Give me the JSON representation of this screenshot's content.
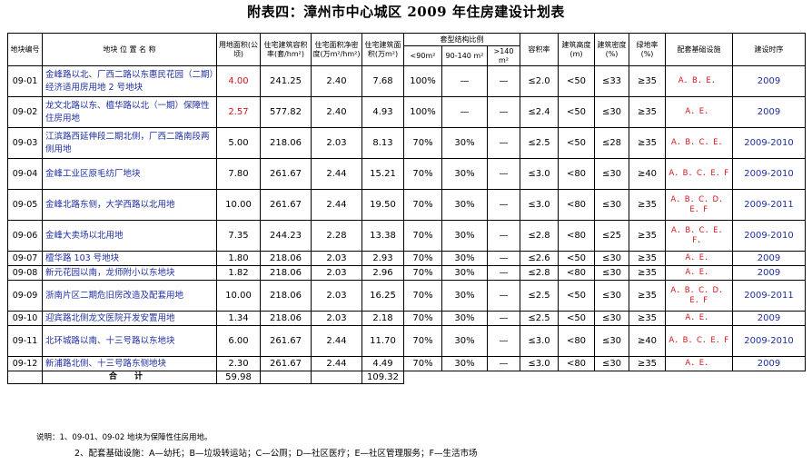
{
  "title": "附表四：漳州市中心城区 2009 年住房建设计划表",
  "headers": {
    "id": "地块编号",
    "name": "地块 位 置 名 称",
    "land_area": "用地面积(公顷)",
    "build_density": "住宅建筑容积率(套/hm²)",
    "housing_area_rate": "住宅面积净密度(万m²/hm²)",
    "housing_area": "住宅建筑面积(万m²)",
    "unit_mix": "套型结构比例",
    "mix_lt90": "<90m²",
    "mix_90_140": "90-140 m²",
    "mix_gt140": ">140 m²",
    "far": "容积率",
    "height": "建筑高度(m)",
    "density": "建筑密度(%)",
    "green": "绿地率(%)",
    "facilities": "配套基础设施",
    "timeline": "建设时序"
  },
  "rows": [
    {
      "id": "09-01",
      "name": "金峰路以北、厂西二路以东惠民花园（二期）经济适用房用地 2 号地块",
      "land": "4.00",
      "land_red": true,
      "units": "241.25",
      "rate": "2.40",
      "area": "7.68",
      "lt90": "100%",
      "m90": "—",
      "gt140": "—",
      "far": "≤2.0",
      "height": "<50",
      "density": "≤33",
      "green": "≥35",
      "fac": "A．B．E．",
      "year": "2009"
    },
    {
      "id": "09-02",
      "name": "龙文北路以东、檀华路以北（一期）保障性住房用地",
      "land": "2.57",
      "land_red": true,
      "units": "577.82",
      "rate": "2.40",
      "area": "4.93",
      "lt90": "100%",
      "m90": "—",
      "gt140": "—",
      "far": "≤2.4",
      "height": "<50",
      "density": "≤30",
      "green": "≥35",
      "fac": "A．E．",
      "year": "2009"
    },
    {
      "id": "09-03",
      "name": "江滨路西延伸段二期北侧，厂西二路南段两侧用地",
      "land": "5.00",
      "land_red": false,
      "units": "218.06",
      "rate": "2.03",
      "area": "8.13",
      "lt90": "70%",
      "m90": "30%",
      "gt140": "—",
      "far": "≤2.5",
      "height": "<50",
      "density": "≤28",
      "green": "≥35",
      "fac": "A．B．C．E．",
      "year": "2009-2010"
    },
    {
      "id": "09-04",
      "name": "金峰工业区原毛纺厂地块",
      "land": "7.80",
      "land_red": false,
      "units": "261.67",
      "rate": "2.44",
      "area": "15.21",
      "lt90": "70%",
      "m90": "30%",
      "gt140": "—",
      "far": "≤3.0",
      "height": "<80",
      "density": "≤30",
      "green": "≥40",
      "fac": "A．B．C．E．F",
      "year": "2009-2010"
    },
    {
      "id": "09-05",
      "name": "金峰北路东侧，大学西路以北用地",
      "land": "10.00",
      "land_red": false,
      "units": "261.67",
      "rate": "2.44",
      "area": "19.50",
      "lt90": "70%",
      "m90": "30%",
      "gt140": "—",
      "far": "≤3.0",
      "height": "<80",
      "density": "≤30",
      "green": "≥35",
      "fac": "A．B．C．D．E．F",
      "year": "2009-2011"
    },
    {
      "id": "09-06",
      "name": "金峰大卖场以北用地",
      "land": "7.35",
      "land_red": false,
      "units": "244.23",
      "rate": "2.28",
      "area": "13.38",
      "lt90": "70%",
      "m90": "30%",
      "gt140": "—",
      "far": "≤2.8",
      "height": "<80",
      "density": "≤25",
      "green": "≥35",
      "fac": "A．B．C．E．F．",
      "year": "2009-2010"
    },
    {
      "id": "09-07",
      "name": "檀华路 103 号地块",
      "land": "1.80",
      "land_red": false,
      "units": "218.06",
      "rate": "2.03",
      "area": "2.93",
      "lt90": "70%",
      "m90": "30%",
      "gt140": "—",
      "far": "≤2.6",
      "height": "<50",
      "density": "≤30",
      "green": "≥35",
      "fac": "A．E．",
      "year": "2009"
    },
    {
      "id": "09-08",
      "name": "新元花园以南，龙师附小以东地块",
      "land": "1.82",
      "land_red": false,
      "units": "218.06",
      "rate": "2.03",
      "area": "2.96",
      "lt90": "70%",
      "m90": "30%",
      "gt140": "—",
      "far": "≤2.8",
      "height": "<80",
      "density": "≤30",
      "green": "≥35",
      "fac": "A．E．",
      "year": "2009"
    },
    {
      "id": "09-09",
      "name": "浙南片区二期危旧房改造及配套用地",
      "land": "10.00",
      "land_red": false,
      "units": "218.06",
      "rate": "2.03",
      "area": "16.25",
      "lt90": "70%",
      "m90": "30%",
      "gt140": "—",
      "far": "≤2.5",
      "height": "<50",
      "density": "≤30",
      "green": "≥35",
      "fac": "A．B．C．D．E．F",
      "year": "2009-2011"
    },
    {
      "id": "09-10",
      "name": "迎宾路北侧龙文医院开发安置用地",
      "land": "1.34",
      "land_red": false,
      "units": "218.06",
      "rate": "2.03",
      "area": "2.18",
      "lt90": "70%",
      "m90": "30%",
      "gt140": "—",
      "far": "≤2.5",
      "height": "<50",
      "density": "≤30",
      "green": "≥35",
      "fac": "A．E．",
      "year": "2009"
    },
    {
      "id": "09-11",
      "name": "北环城路以南、十三号路以东地块",
      "land": "6.00",
      "land_red": false,
      "units": "261.67",
      "rate": "2.44",
      "area": "11.70",
      "lt90": "70%",
      "m90": "30%",
      "gt140": "—",
      "far": "≤3.0",
      "height": "<80",
      "density": "≤30",
      "green": "≥40",
      "fac": "A．B．C．E．F",
      "year": "2009-2010"
    },
    {
      "id": "09-12",
      "name": "新浦路北侧、十三号路东侧地块",
      "land": "2.30",
      "land_red": false,
      "units": "261.67",
      "rate": "2.44",
      "area": "4.49",
      "lt90": "70%",
      "m90": "30%",
      "gt140": "—",
      "far": "≤3.0",
      "height": "<80",
      "density": "≤30",
      "green": "≥35",
      "fac": "A．E．",
      "year": "2009"
    }
  ],
  "total": {
    "label": "合 计",
    "land": "59.98",
    "area": "109.32"
  },
  "notes": {
    "line1": "说明：1、09-01、09-02 地块为保障性住房用地。",
    "line2": "2、配套基础设施：A—幼托；B—垃圾转运站；C—公厕；D—社区医疗；E—社区管理服务；F—生活市场"
  },
  "colors": {
    "red": "#d4131a",
    "blue": "#1f2fa0"
  }
}
